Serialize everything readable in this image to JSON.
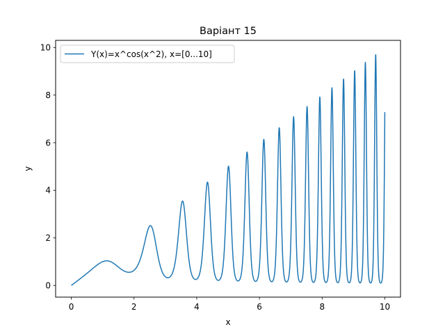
{
  "chart_data": {
    "type": "line",
    "title": "Варіант 15",
    "xlabel": "x",
    "ylabel": "y",
    "xlim": [
      -0.5,
      10.5
    ],
    "ylim": [
      -0.49,
      10.3
    ],
    "x_ticks": [
      0,
      2,
      4,
      6,
      8,
      10
    ],
    "y_ticks": [
      0,
      2,
      4,
      6,
      8,
      10
    ],
    "grid": false,
    "legend_position": "upper-left",
    "series": [
      {
        "name": "Y(x)=x^cos(x^2), x=[0...10]",
        "color": "#1f77b4",
        "function": "x^cos(x^2)",
        "x_range": [
          0,
          10
        ],
        "samples": 2000
      }
    ]
  }
}
